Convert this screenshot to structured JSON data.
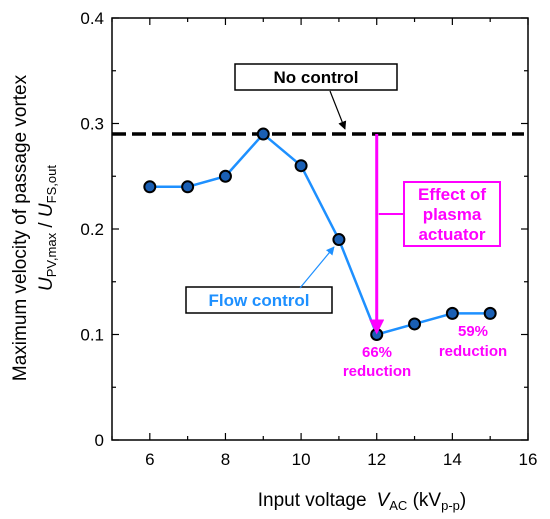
{
  "chart_data": {
    "type": "line",
    "xlabel": "Input voltage",
    "xlabel_var": "V",
    "xlabel_var_sub": "AC",
    "xlabel_unit_pre": " (kV",
    "xlabel_unit_sub": "p-p",
    "xlabel_unit_post": ")",
    "ylabel_line1": "Maximum velocity of passage vortex",
    "ylabel_line2_a": "U",
    "ylabel_line2_a_sub": "PV,max",
    "ylabel_line2_sep": " / ",
    "ylabel_line2_b": "U",
    "ylabel_line2_b_sub": "FS,out",
    "xlim": [
      5,
      16
    ],
    "ylim": [
      0,
      0.4
    ],
    "xticks": [
      6,
      8,
      10,
      12,
      14,
      16
    ],
    "yticks": [
      0,
      0.1,
      0.2,
      0.3,
      0.4
    ],
    "xtick_labels": [
      "6",
      "8",
      "10",
      "12",
      "14",
      "16"
    ],
    "ytick_labels": [
      "0",
      "0.1",
      "0.2",
      "0.3",
      "0.4"
    ],
    "grid": false,
    "series": [
      {
        "name": "Flow control",
        "color": "#1e90ff",
        "marker_color": "#1a5fb4",
        "x": [
          6,
          7,
          8,
          9,
          10,
          11,
          12,
          13,
          14,
          15
        ],
        "y": [
          0.24,
          0.24,
          0.25,
          0.29,
          0.26,
          0.19,
          0.1,
          0.11,
          0.12,
          0.12
        ]
      }
    ],
    "reference_line": {
      "name": "No control",
      "y": 0.29,
      "style": "dashed",
      "color": "#000000"
    },
    "annotations": {
      "no_control_label": "No control",
      "flow_control_label": "Flow control",
      "effect_label_lines": [
        "Effect of",
        "plasma",
        "actuator"
      ],
      "reduction_66_lines": [
        "66%",
        "reduction"
      ],
      "reduction_59_lines": [
        "59%",
        "reduction"
      ],
      "effect_arrow_color": "#ff00ff",
      "effect_arrow_x": 12,
      "effect_arrow_from_y": 0.29,
      "effect_arrow_to_y": 0.1
    }
  }
}
